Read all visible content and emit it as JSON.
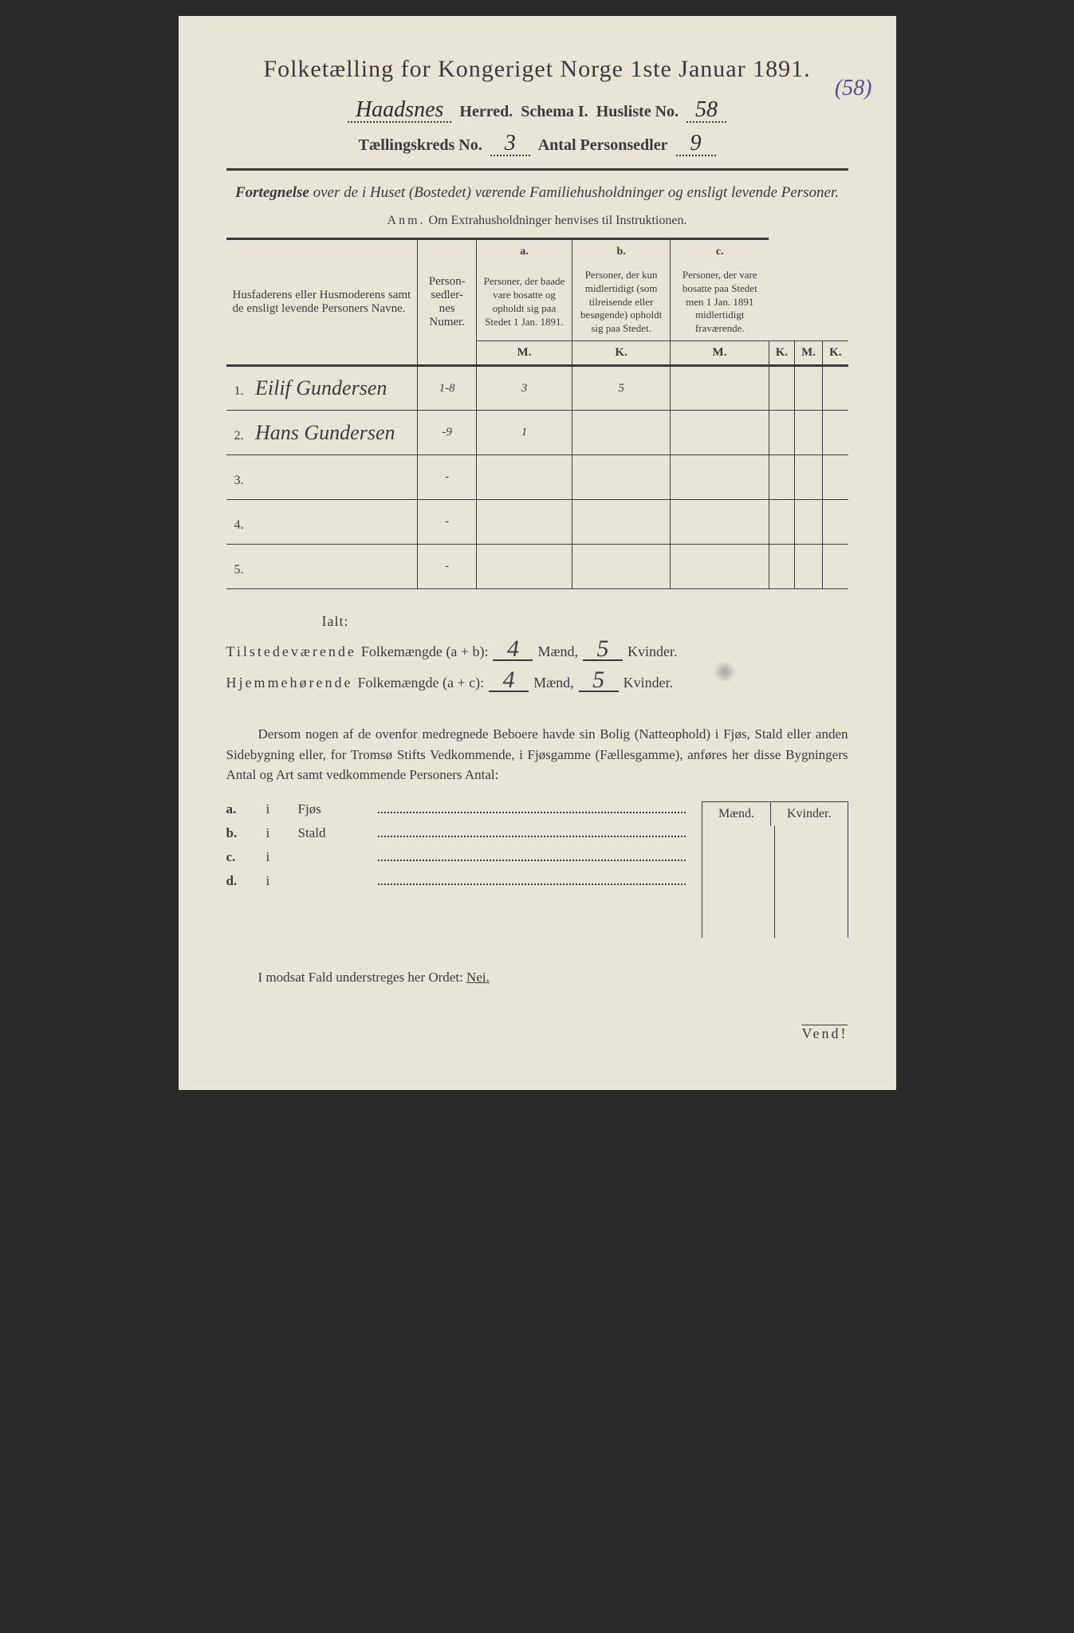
{
  "title": "Folketælling for Kongeriget Norge 1ste Januar 1891.",
  "margin_note": "(58)",
  "header": {
    "herred_value": "Haadsnes",
    "herred_label": "Herred.",
    "schema_label": "Schema I.",
    "husliste_label": "Husliste No.",
    "husliste_value": "58",
    "kreds_label": "Tællingskreds No.",
    "kreds_value": "3",
    "personsedler_label": "Antal Personsedler",
    "personsedler_value": "9"
  },
  "subtitle": {
    "lead": "Fortegnelse",
    "rest": " over de i Huset (Bostedet) værende Familiehusholdninger og ensligt levende Personer."
  },
  "anm": {
    "lead": "Anm.",
    "rest": "Om Extrahusholdninger henvises til Instruktionen."
  },
  "table": {
    "col_name": "Husfaderens eller Husmoderens samt de ensligt levende Personers Navne.",
    "col_num": "Person-sedler-nes Numer.",
    "col_a_letter": "a.",
    "col_a": "Personer, der baade vare bosatte og opholdt sig paa Stedet 1 Jan. 1891.",
    "col_b_letter": "b.",
    "col_b": "Personer, der kun midlertidigt (som tilreisende eller besøgende) opholdt sig paa Stedet.",
    "col_c_letter": "c.",
    "col_c": "Personer, der vare bosatte paa Stedet men 1 Jan. 1891 midlertidigt fraværende.",
    "m": "M.",
    "k": "K.",
    "rows": [
      {
        "idx": "1.",
        "name": "Eilif Gundersen",
        "num": "1-8",
        "a_m": "3",
        "a_k": "5",
        "b_m": "",
        "b_k": "",
        "c_m": "",
        "c_k": ""
      },
      {
        "idx": "2.",
        "name": "Hans Gundersen",
        "num": "-9",
        "a_m": "1",
        "a_k": "",
        "b_m": "",
        "b_k": "",
        "c_m": "",
        "c_k": ""
      },
      {
        "idx": "3.",
        "name": "",
        "num": "-",
        "a_m": "",
        "a_k": "",
        "b_m": "",
        "b_k": "",
        "c_m": "",
        "c_k": ""
      },
      {
        "idx": "4.",
        "name": "",
        "num": "-",
        "a_m": "",
        "a_k": "",
        "b_m": "",
        "b_k": "",
        "c_m": "",
        "c_k": ""
      },
      {
        "idx": "5.",
        "name": "",
        "num": "-",
        "a_m": "",
        "a_k": "",
        "b_m": "",
        "b_k": "",
        "c_m": "",
        "c_k": ""
      }
    ]
  },
  "totals": {
    "ialt": "Ialt:",
    "present_label_1": "Tilstedeværende",
    "present_label_2": "Folkemængde (a + b):",
    "resident_label_1": "Hjemmehørende",
    "resident_label_2": "Folkemængde (a + c):",
    "maend": "Mænd,",
    "kvinder": "Kvinder.",
    "present_m": "4",
    "present_k": "5",
    "resident_m": "4",
    "resident_k": "5"
  },
  "paragraph": "Dersom nogen af de ovenfor medregnede Beboere havde sin Bolig (Natteophold) i Fjøs, Stald eller anden Sidebygning eller, for Tromsø Stifts Vedkommende, i Fjøsgamme (Fællesgamme), anføres her disse Bygningers Antal og Art samt vedkommende Personers Antal:",
  "abcd": {
    "maend": "Mænd.",
    "kvinder": "Kvinder.",
    "rows": [
      {
        "letter": "a.",
        "i": "i",
        "name": "Fjøs"
      },
      {
        "letter": "b.",
        "i": "i",
        "name": "Stald"
      },
      {
        "letter": "c.",
        "i": "i",
        "name": ""
      },
      {
        "letter": "d.",
        "i": "i",
        "name": ""
      }
    ]
  },
  "footer": {
    "text": "I modsat Fald understreges her Ordet: ",
    "nei": "Nei."
  },
  "vend": "Vend!",
  "colors": {
    "paper": "#e8e4d8",
    "ink": "#3a3a3a",
    "margin_ink": "#5a4a8a",
    "background": "#2a2a2a"
  }
}
